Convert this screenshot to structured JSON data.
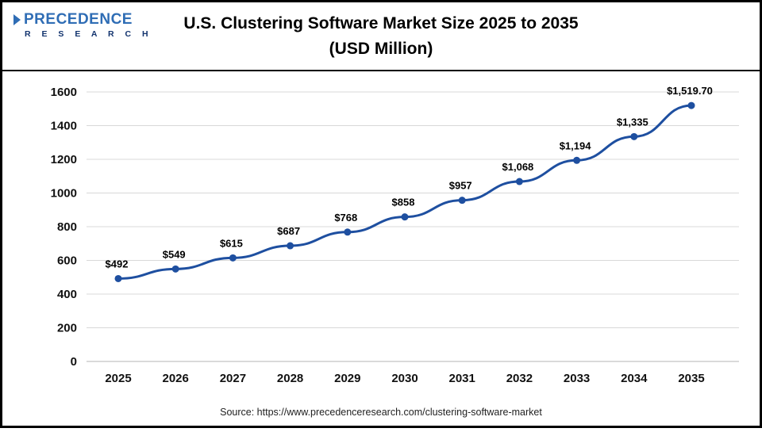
{
  "header": {
    "title_line1": "U.S. Clustering Software Market Size 2025 to 2035",
    "title_line2": "(USD Million)"
  },
  "logo": {
    "name": "PRECEDENCE",
    "subtitle": "R E S E A R C H"
  },
  "footer": {
    "source": "Source: https://www.precedenceresearch.com/clustering-software-market"
  },
  "chart_data": {
    "type": "line",
    "title": "U.S. Clustering Software Market Size 2025 to 2035 (USD Million)",
    "categories": [
      "2025",
      "2026",
      "2027",
      "2028",
      "2029",
      "2030",
      "2031",
      "2032",
      "2033",
      "2034",
      "2035"
    ],
    "values": [
      492,
      549,
      615,
      687,
      768,
      858,
      957,
      1068,
      1194,
      1335,
      1519.7
    ],
    "labels": [
      "$492",
      "$549",
      "$615",
      "$687",
      "$768",
      "$858",
      "$957",
      "$1,068",
      "$1,194",
      "$1,335",
      "$1,519.70"
    ],
    "xlabel": "",
    "ylabel": "",
    "ylim": [
      0,
      1600
    ],
    "ytick_step": 200,
    "grid": true,
    "legend": "none",
    "line_color": "#1e4fa0",
    "point_color": "#1e4fa0",
    "grid_color": "#d8d8d8",
    "axis_text_color": "#111111",
    "label_text_color": "#000000"
  }
}
